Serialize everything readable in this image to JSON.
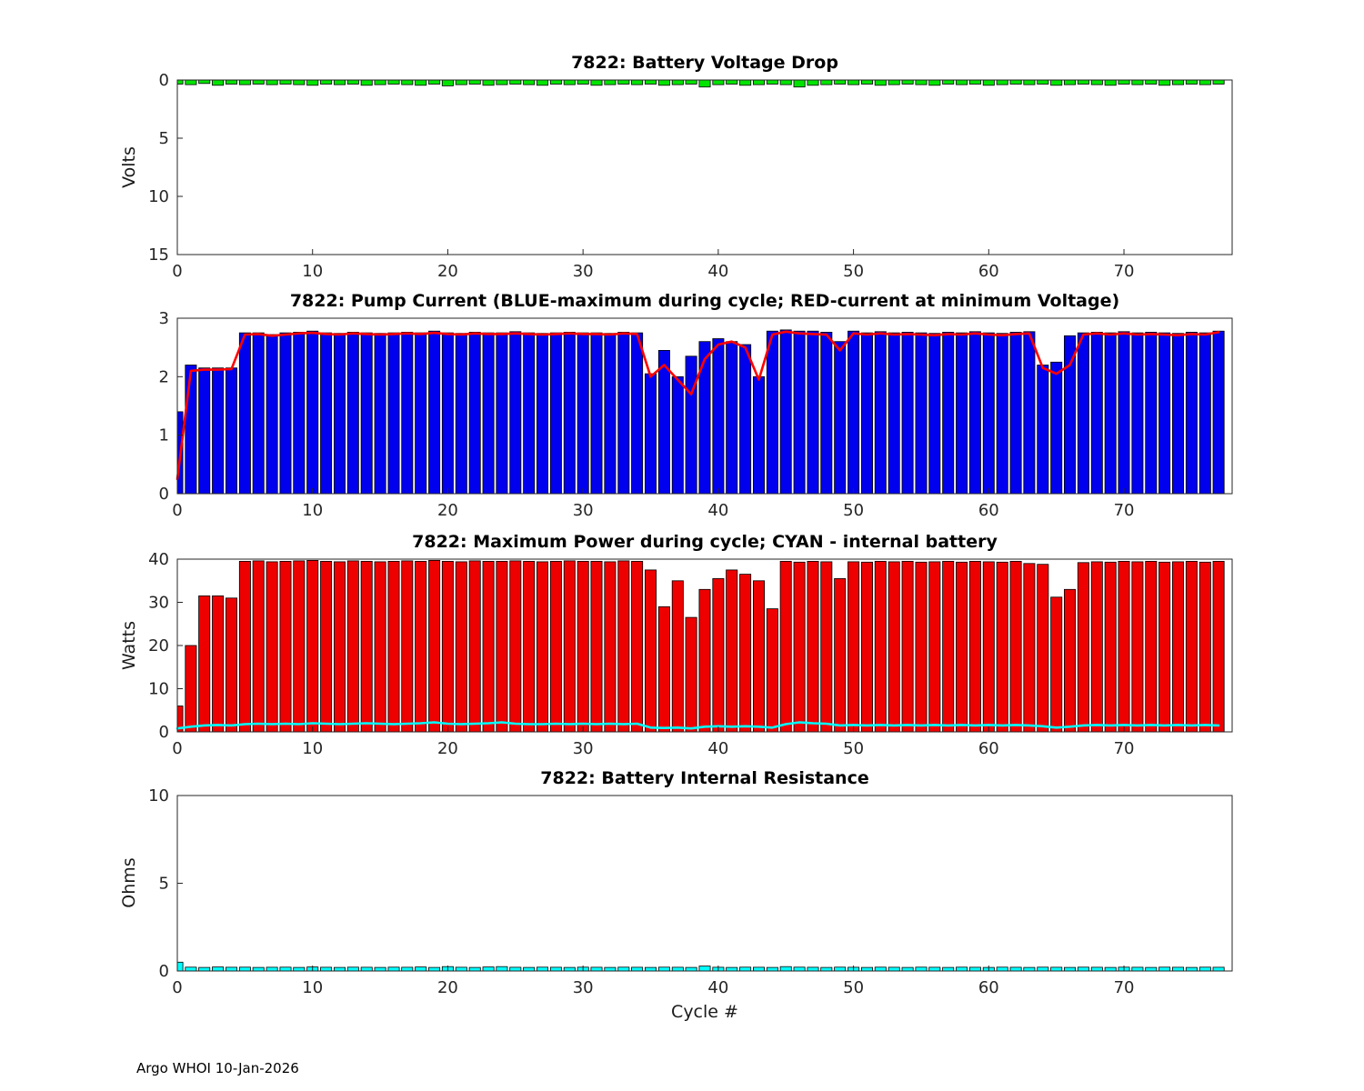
{
  "figure": {
    "xlabel": "Cycle #",
    "footer": "Argo WHOI 10-Jan-2026"
  },
  "chart_data": [
    {
      "id": "battery-voltage-drop",
      "type": "bar",
      "title": "7822: Battery Voltage Drop",
      "ylabel": "Volts",
      "xlabel": "",
      "ylim": [
        0,
        15
      ],
      "y_reversed": true,
      "yticks": [
        0,
        5,
        10,
        15
      ],
      "xlim": [
        0,
        78
      ],
      "xticks": [
        0,
        10,
        20,
        30,
        40,
        50,
        60,
        70
      ],
      "grid": false,
      "series": [
        {
          "name": "voltage-drop",
          "kind": "bar",
          "color": "#00e400",
          "values": [
            0.35,
            0.4,
            0.3,
            0.45,
            0.35,
            0.4,
            0.35,
            0.4,
            0.35,
            0.4,
            0.45,
            0.35,
            0.4,
            0.35,
            0.45,
            0.4,
            0.35,
            0.4,
            0.45,
            0.35,
            0.5,
            0.4,
            0.35,
            0.45,
            0.4,
            0.35,
            0.4,
            0.45,
            0.35,
            0.4,
            0.35,
            0.45,
            0.4,
            0.35,
            0.4,
            0.35,
            0.45,
            0.4,
            0.35,
            0.6,
            0.4,
            0.35,
            0.45,
            0.4,
            0.35,
            0.4,
            0.6,
            0.45,
            0.4,
            0.35,
            0.4,
            0.35,
            0.45,
            0.4,
            0.35,
            0.4,
            0.45,
            0.35,
            0.4,
            0.35,
            0.45,
            0.4,
            0.35,
            0.4,
            0.35,
            0.45,
            0.4,
            0.35,
            0.4,
            0.45,
            0.35,
            0.4,
            0.35,
            0.45,
            0.4,
            0.35,
            0.4,
            0.35
          ]
        }
      ]
    },
    {
      "id": "pump-current",
      "type": "bar",
      "title": "7822: Pump Current (BLUE-maximum during cycle; RED-current at minimum Voltage)",
      "ylabel": "",
      "xlabel": "",
      "ylim": [
        0,
        3
      ],
      "y_reversed": false,
      "yticks": [
        0,
        1,
        2,
        3
      ],
      "xlim": [
        0,
        78
      ],
      "xticks": [
        0,
        10,
        20,
        30,
        40,
        50,
        60,
        70
      ],
      "grid": false,
      "series": [
        {
          "name": "max-current-during-cycle",
          "kind": "bar",
          "color": "#0000ee",
          "values": [
            1.4,
            2.2,
            2.15,
            2.15,
            2.15,
            2.75,
            2.75,
            2.72,
            2.75,
            2.76,
            2.78,
            2.75,
            2.74,
            2.76,
            2.75,
            2.74,
            2.75,
            2.76,
            2.75,
            2.78,
            2.75,
            2.74,
            2.76,
            2.75,
            2.75,
            2.77,
            2.75,
            2.74,
            2.75,
            2.76,
            2.75,
            2.75,
            2.74,
            2.76,
            2.75,
            2.05,
            2.45,
            2.0,
            2.35,
            2.6,
            2.65,
            2.6,
            2.55,
            2.0,
            2.78,
            2.8,
            2.78,
            2.78,
            2.76,
            2.6,
            2.78,
            2.75,
            2.77,
            2.75,
            2.76,
            2.75,
            2.74,
            2.76,
            2.75,
            2.77,
            2.75,
            2.74,
            2.76,
            2.77,
            2.2,
            2.25,
            2.7,
            2.75,
            2.76,
            2.75,
            2.77,
            2.75,
            2.76,
            2.75,
            2.74,
            2.76,
            2.75,
            2.78
          ]
        },
        {
          "name": "current-at-minimum-voltage",
          "kind": "line",
          "color": "#ff0000",
          "values": [
            0.25,
            2.1,
            2.12,
            2.12,
            2.13,
            2.72,
            2.73,
            2.7,
            2.72,
            2.74,
            2.75,
            2.73,
            2.72,
            2.74,
            2.73,
            2.72,
            2.73,
            2.74,
            2.73,
            2.75,
            2.73,
            2.72,
            2.74,
            2.73,
            2.73,
            2.74,
            2.73,
            2.72,
            2.73,
            2.74,
            2.73,
            2.73,
            2.72,
            2.74,
            2.73,
            2.0,
            2.2,
            1.95,
            1.7,
            2.3,
            2.55,
            2.6,
            2.5,
            1.95,
            2.72,
            2.77,
            2.74,
            2.73,
            2.72,
            2.45,
            2.74,
            2.72,
            2.74,
            2.72,
            2.73,
            2.72,
            2.71,
            2.73,
            2.72,
            2.74,
            2.72,
            2.71,
            2.73,
            2.74,
            2.15,
            2.05,
            2.2,
            2.72,
            2.74,
            2.72,
            2.74,
            2.72,
            2.73,
            2.72,
            2.71,
            2.73,
            2.72,
            2.76
          ]
        }
      ]
    },
    {
      "id": "max-power",
      "type": "bar",
      "title": "7822: Maximum Power during cycle; CYAN - internal battery",
      "ylabel": "Watts",
      "xlabel": "",
      "ylim": [
        0,
        40
      ],
      "y_reversed": false,
      "yticks": [
        0,
        10,
        20,
        30,
        40
      ],
      "xlim": [
        0,
        78
      ],
      "xticks": [
        0,
        10,
        20,
        30,
        40,
        50,
        60,
        70
      ],
      "grid": false,
      "series": [
        {
          "name": "max-power-during-cycle",
          "kind": "bar",
          "color": "#ee0000",
          "values": [
            6.0,
            20.0,
            31.5,
            31.5,
            31.0,
            39.5,
            39.6,
            39.4,
            39.5,
            39.6,
            39.7,
            39.5,
            39.4,
            39.6,
            39.5,
            39.4,
            39.5,
            39.6,
            39.5,
            39.7,
            39.5,
            39.4,
            39.6,
            39.5,
            39.5,
            39.6,
            39.5,
            39.4,
            39.5,
            39.6,
            39.5,
            39.5,
            39.4,
            39.6,
            39.5,
            37.5,
            29.0,
            35.0,
            26.5,
            33.0,
            35.5,
            37.5,
            36.5,
            35.0,
            28.5,
            39.5,
            39.3,
            39.5,
            39.4,
            35.5,
            39.4,
            39.3,
            39.5,
            39.4,
            39.5,
            39.3,
            39.4,
            39.5,
            39.3,
            39.5,
            39.4,
            39.3,
            39.5,
            39.0,
            38.8,
            31.2,
            33.0,
            39.2,
            39.4,
            39.3,
            39.5,
            39.4,
            39.5,
            39.3,
            39.4,
            39.5,
            39.3,
            39.5
          ]
        },
        {
          "name": "internal-battery-power",
          "kind": "line",
          "color": "#00ffff",
          "values": [
            0.8,
            1.2,
            1.5,
            1.6,
            1.5,
            1.8,
            1.9,
            1.8,
            1.9,
            1.8,
            2.0,
            1.9,
            1.8,
            1.9,
            2.0,
            1.9,
            1.8,
            1.9,
            2.0,
            2.2,
            1.9,
            1.8,
            1.9,
            2.0,
            2.2,
            1.9,
            1.8,
            1.8,
            1.9,
            1.8,
            1.9,
            1.8,
            1.9,
            1.8,
            1.9,
            1.0,
            0.9,
            1.0,
            0.8,
            1.2,
            1.3,
            1.2,
            1.3,
            1.2,
            1.0,
            1.8,
            2.2,
            2.0,
            1.9,
            1.5,
            1.6,
            1.5,
            1.6,
            1.5,
            1.6,
            1.5,
            1.6,
            1.5,
            1.6,
            1.5,
            1.6,
            1.5,
            1.6,
            1.5,
            1.3,
            1.0,
            1.2,
            1.5,
            1.6,
            1.5,
            1.6,
            1.5,
            1.6,
            1.5,
            1.6,
            1.5,
            1.6,
            1.5
          ]
        }
      ]
    },
    {
      "id": "internal-resistance",
      "type": "bar",
      "title": "7822: Battery Internal Resistance",
      "ylabel": "Ohms",
      "xlabel": "Cycle #",
      "ylim": [
        0,
        10
      ],
      "y_reversed": false,
      "yticks": [
        0,
        5,
        10
      ],
      "xlim": [
        0,
        78
      ],
      "xticks": [
        0,
        10,
        20,
        30,
        40,
        50,
        60,
        70
      ],
      "grid": false,
      "series": [
        {
          "name": "battery-internal-resistance",
          "kind": "bar",
          "color": "#00ffff",
          "values": [
            0.5,
            0.22,
            0.2,
            0.23,
            0.21,
            0.22,
            0.2,
            0.21,
            0.22,
            0.2,
            0.23,
            0.21,
            0.2,
            0.22,
            0.21,
            0.2,
            0.22,
            0.21,
            0.23,
            0.2,
            0.25,
            0.21,
            0.2,
            0.23,
            0.25,
            0.21,
            0.2,
            0.22,
            0.21,
            0.2,
            0.22,
            0.21,
            0.2,
            0.22,
            0.21,
            0.2,
            0.22,
            0.21,
            0.2,
            0.28,
            0.21,
            0.2,
            0.22,
            0.21,
            0.2,
            0.25,
            0.22,
            0.21,
            0.2,
            0.22,
            0.21,
            0.2,
            0.22,
            0.21,
            0.2,
            0.22,
            0.21,
            0.2,
            0.22,
            0.21,
            0.2,
            0.22,
            0.21,
            0.2,
            0.22,
            0.21,
            0.2,
            0.22,
            0.21,
            0.2,
            0.22,
            0.21,
            0.2,
            0.22,
            0.21,
            0.2,
            0.22,
            0.21
          ]
        }
      ]
    }
  ]
}
